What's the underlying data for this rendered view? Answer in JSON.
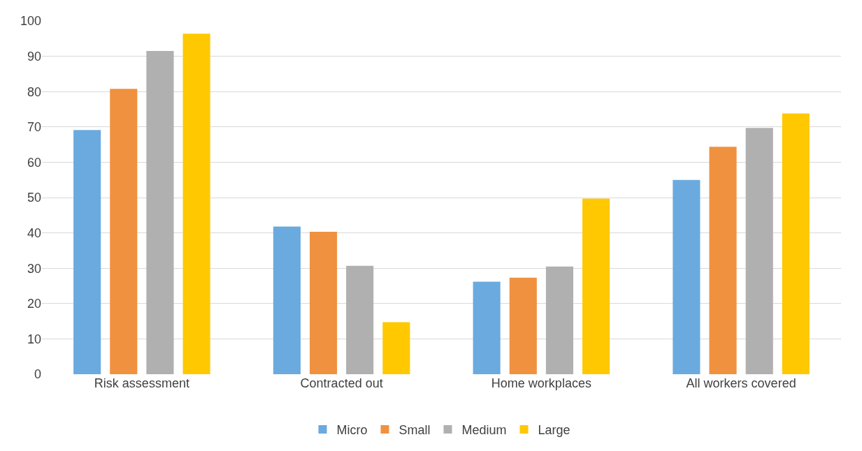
{
  "chart_data": {
    "type": "bar",
    "categories": [
      "Risk assessment",
      "Contracted out",
      "Home workplaces",
      "All workers covered"
    ],
    "series": [
      {
        "name": "Micro",
        "color": "#6aaadf",
        "values": [
          69.1,
          41.8,
          26.2,
          55.0
        ]
      },
      {
        "name": "Small",
        "color": "#f0913f",
        "values": [
          80.8,
          40.3,
          27.3,
          64.4
        ]
      },
      {
        "name": "Medium",
        "color": "#b0b0b0",
        "values": [
          91.5,
          30.7,
          30.5,
          69.7
        ]
      },
      {
        "name": "Large",
        "color": "#ffc800",
        "values": [
          96.4,
          14.7,
          49.7,
          73.8
        ]
      }
    ],
    "ylim": [
      0,
      100
    ],
    "yticks": [
      0,
      10,
      20,
      30,
      40,
      50,
      60,
      70,
      80,
      90,
      100
    ],
    "grid": "y",
    "legend": "bottom"
  }
}
